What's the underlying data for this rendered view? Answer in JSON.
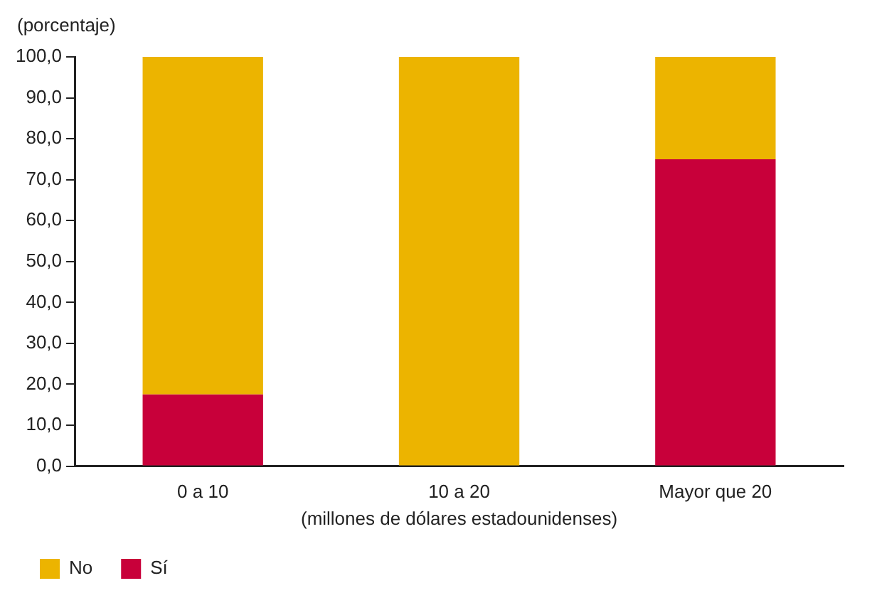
{
  "chart_data": {
    "type": "bar",
    "stacked": true,
    "ylabel": "(porcentaje)",
    "xlabel": "(millones de dólares estadounidenses)",
    "categories": [
      "0 a 10",
      "10 a 20",
      "Mayor que 20"
    ],
    "series": [
      {
        "name": "Sí",
        "color": "#c8003a",
        "values": [
          17.5,
          0,
          75
        ]
      },
      {
        "name": "No",
        "color": "#ecb400",
        "values": [
          82.5,
          100,
          25
        ]
      }
    ],
    "ylim": [
      0,
      100
    ],
    "yticks": [
      {
        "value": 0,
        "label": "0,0"
      },
      {
        "value": 10,
        "label": "10,0"
      },
      {
        "value": 20,
        "label": "20,0"
      },
      {
        "value": 30,
        "label": "30,0"
      },
      {
        "value": 40,
        "label": "40,0"
      },
      {
        "value": 50,
        "label": "50,0"
      },
      {
        "value": 60,
        "label": "60,0"
      },
      {
        "value": 70,
        "label": "70,0"
      },
      {
        "value": 80,
        "label": "80,0"
      },
      {
        "value": 90,
        "label": "90,0"
      },
      {
        "value": 100,
        "label": "100,0"
      }
    ],
    "grid": false,
    "legend": "bottom"
  }
}
